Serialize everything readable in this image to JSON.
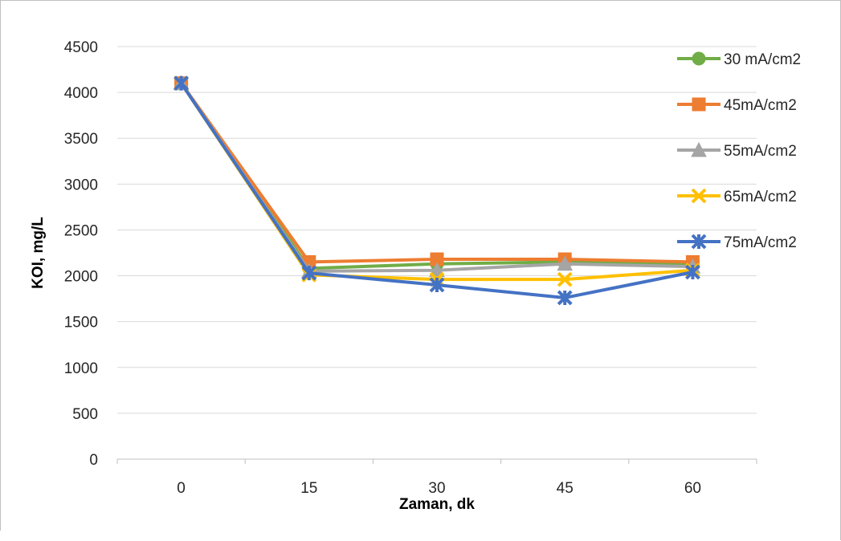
{
  "chart_data": {
    "type": "line",
    "title": "",
    "xlabel": "Zaman, dk",
    "ylabel": "KOI, mg/L",
    "categories": [
      "0",
      "15",
      "30",
      "45",
      "60"
    ],
    "ylim": [
      0,
      4500
    ],
    "yticks": [
      0,
      500,
      1000,
      1500,
      2000,
      2500,
      3000,
      3500,
      4000,
      4500
    ],
    "grid": "horizontal",
    "legend_position": "right",
    "series": [
      {
        "name": "30 mA/cm2",
        "values": [
          4100,
          2080,
          2130,
          2150,
          2120
        ],
        "color": "#70ad47",
        "marker": "circle"
      },
      {
        "name": "45mA/cm2",
        "values": [
          4100,
          2150,
          2180,
          2180,
          2150
        ],
        "color": "#ed7d31",
        "marker": "square"
      },
      {
        "name": "55mA/cm2",
        "values": [
          4100,
          2050,
          2060,
          2130,
          2100
        ],
        "color": "#a5a5a5",
        "marker": "triangle"
      },
      {
        "name": "65mA/cm2",
        "values": [
          4100,
          2010,
          1960,
          1960,
          2060
        ],
        "color": "#ffc000",
        "marker": "x"
      },
      {
        "name": "75mA/cm2",
        "values": [
          4100,
          2030,
          1900,
          1760,
          2040
        ],
        "color": "#4472c4",
        "marker": "star"
      }
    ]
  }
}
